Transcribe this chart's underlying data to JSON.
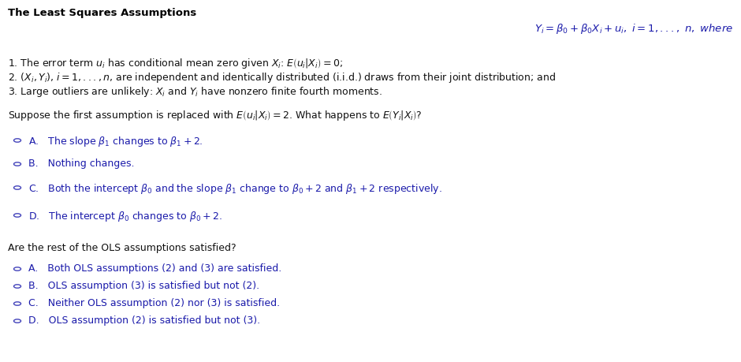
{
  "title": "The Least Squares Assumptions",
  "bg_color": "#ffffff",
  "text_color": "#000000",
  "formula_color": "#1a1aaa",
  "body_color": "#111111",
  "option_color": "#1a1aaa",
  "circle_color": "#4444bb",
  "title_fontsize": 9.5,
  "body_fontsize": 9.0,
  "formula_fontsize": 9.5,
  "assumption1": "1. The error term $u_i$ has conditional mean zero given $X_i$: $E\\left(u_i|X_i\\right) = 0$;",
  "assumption2": "2. $\\left(X_i, Y_i\\right)$, $i = 1,..., n$, are independent and identically distributed (i.i.d.) draws from their joint distribution; and",
  "assumption3": "3. Large outliers are unlikely: $X_i$ and $Y_i$ have nonzero finite fourth moments.",
  "question1": "Suppose the first assumption is replaced with $E\\left(u_i|X_i\\right) = 2$. What happens to $E\\left(Y_i|X_i\\right)$?",
  "q1_options": [
    "A.   The slope $\\beta_1$ changes to $\\beta_1 + 2$.",
    "B.   Nothing changes.",
    "C.   Both the intercept $\\beta_0$ and the slope $\\beta_1$ change to $\\beta_0 + 2$ and $\\beta_1 + 2$ respectively.",
    "D.   The intercept $\\beta_0$ changes to $\\beta_0 + 2$."
  ],
  "question2": "Are the rest of the OLS assumptions satisfied?",
  "q2_options": [
    "A.   Both OLS assumptions (2) and (3) are satisfied.",
    "B.   OLS assumption (3) is satisfied but not (2).",
    "C.   Neither OLS assumption (2) nor (3) is satisfied.",
    "D.   OLS assumption (2) is satisfied but not (3)."
  ]
}
